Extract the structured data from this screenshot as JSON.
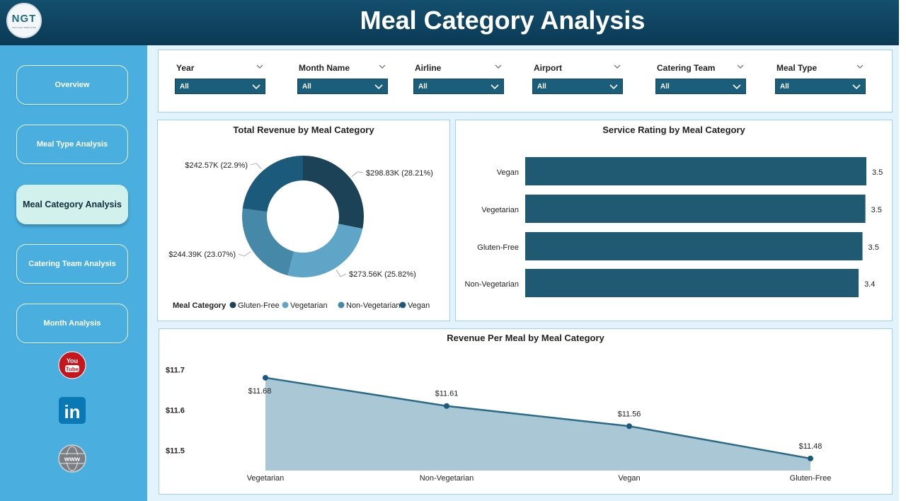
{
  "header": {
    "title": "Meal Category Analysis",
    "logo_text": "NGT",
    "logo_subtext": "NEXT GEN TEMPLATES"
  },
  "sidebar": {
    "items": [
      {
        "label": "Overview",
        "active": false
      },
      {
        "label": "Meal Type Analysis",
        "active": false
      },
      {
        "label": "Meal Category Analysis",
        "active": true
      },
      {
        "label": "Catering Team Analysis",
        "active": false
      },
      {
        "label": "Month Analysis",
        "active": false
      }
    ],
    "social": [
      "youtube-icon",
      "linkedin-icon",
      "website-icon"
    ],
    "youtube_text": "You Tube",
    "linkedin_text": "in",
    "website_text": "www"
  },
  "filters": [
    {
      "label": "Year",
      "value": "All"
    },
    {
      "label": "Month Name",
      "value": "All"
    },
    {
      "label": "Airline",
      "value": "All"
    },
    {
      "label": "Airport",
      "value": "All"
    },
    {
      "label": "Catering Team",
      "value": "All"
    },
    {
      "label": "Meal Type",
      "value": "All"
    }
  ],
  "colors": {
    "header": "#0b3a55",
    "sidebar": "#4aaedf",
    "bar": "#1f5a72",
    "line": "#2b6b8a",
    "area": "#a9c7d4"
  },
  "chart_data": [
    {
      "type": "pie",
      "title": "Total Revenue by Meal Category",
      "legend_title": "Meal Category",
      "slices": [
        {
          "name": "Gluten-Free",
          "value_label": "$298.83K (28.21%)",
          "value": 298.83,
          "percent": 28.21,
          "color": "#1b4256"
        },
        {
          "name": "Vegetarian",
          "value_label": "$273.56K (25.82%)",
          "value": 273.56,
          "percent": 25.82,
          "color": "#5fa5c8"
        },
        {
          "name": "Non-Vegetarian",
          "value_label": "$244.39K (23.07%)",
          "value": 244.39,
          "percent": 23.07,
          "color": "#4588a8"
        },
        {
          "name": "Vegan",
          "value_label": "$242.57K (22.9%)",
          "value": 242.57,
          "percent": 22.9,
          "color": "#1b5a7a"
        }
      ]
    },
    {
      "type": "bar",
      "orientation": "horizontal",
      "title": "Service Rating by Meal Category",
      "categories": [
        "Vegan",
        "Vegetarian",
        "Gluten-Free",
        "Non-Vegetarian"
      ],
      "values": [
        3.5,
        3.5,
        3.5,
        3.4
      ],
      "value_labels": [
        "3.5",
        "3.5",
        "3.5",
        "3.4"
      ],
      "bar_values": [
        3.53,
        3.52,
        3.49,
        3.45
      ]
    },
    {
      "type": "area",
      "title": "Revenue Per Meal by Meal Category",
      "categories": [
        "Vegetarian",
        "Non-Vegetarian",
        "Vegan",
        "Gluten-Free"
      ],
      "values": [
        11.68,
        11.61,
        11.56,
        11.48
      ],
      "value_labels": [
        "$11.68",
        "$11.61",
        "$11.56",
        "$11.48"
      ],
      "y_ticks": [
        "$11.7",
        "$11.6",
        "$11.5"
      ],
      "y_tick_values": [
        11.7,
        11.6,
        11.5
      ],
      "ylim": [
        11.45,
        11.72
      ]
    }
  ]
}
